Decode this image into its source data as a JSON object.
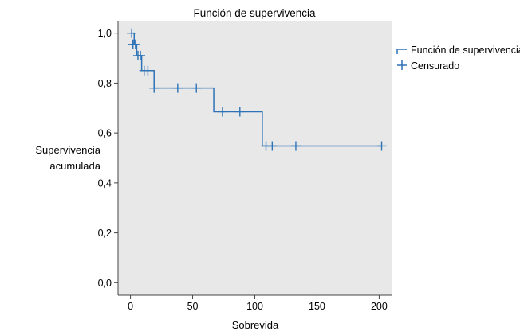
{
  "chart_data": {
    "type": "line",
    "title": "Función de supervivencia",
    "xlabel": "Sobrevida",
    "ylabel_lines": [
      "Supervivencia",
      "acumulada"
    ],
    "xlim": [
      -10,
      210
    ],
    "ylim": [
      -0.05,
      1.05
    ],
    "xticks": [
      0,
      50,
      100,
      150,
      200
    ],
    "yticks": [
      0.0,
      0.2,
      0.4,
      0.6,
      0.8,
      1.0
    ],
    "xtick_labels": [
      "0",
      "50",
      "100",
      "150",
      "200"
    ],
    "ytick_labels": [
      "0,0",
      "0,2",
      "0,4",
      "0,6",
      "0,8",
      "1,0"
    ],
    "grid": false,
    "legend_position": "right",
    "series": [
      {
        "name": "Función de supervivencia",
        "kind": "step",
        "color": "#2f73b7",
        "steps": [
          [
            0,
            1.0
          ],
          [
            3,
            0.955
          ],
          [
            5,
            0.91
          ],
          [
            9,
            0.85
          ],
          [
            19,
            0.78
          ],
          [
            67,
            0.685
          ],
          [
            106,
            0.548
          ],
          [
            202,
            0.548
          ]
        ]
      },
      {
        "name": "Censurado",
        "kind": "censor-marks",
        "color": "#2f73b7",
        "points": [
          [
            1,
            1.0
          ],
          [
            2,
            0.955
          ],
          [
            4,
            0.955
          ],
          [
            6,
            0.91
          ],
          [
            8,
            0.91
          ],
          [
            11,
            0.85
          ],
          [
            14,
            0.85
          ],
          [
            19,
            0.78
          ],
          [
            38,
            0.78
          ],
          [
            53,
            0.78
          ],
          [
            74,
            0.685
          ],
          [
            88,
            0.685
          ],
          [
            109,
            0.548
          ],
          [
            114,
            0.548
          ],
          [
            133,
            0.548
          ],
          [
            202,
            0.548
          ]
        ]
      }
    ],
    "colors": {
      "plot_background": "#e8e8e8",
      "line": "#2f73b7",
      "axis": "#444444"
    }
  }
}
